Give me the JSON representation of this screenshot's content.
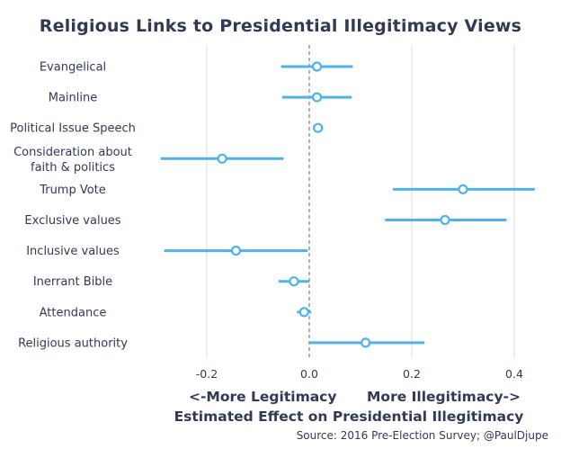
{
  "chart_data": {
    "type": "forest",
    "title": "Religious Links to Presidential Illegitimacy Views",
    "xlabel": "Estimated Effect on Presidential Illegitimacy",
    "xlabel_left": "<-More Legitimacy",
    "xlabel_right": "More Illegitimacy->",
    "source": "Source: 2016 Pre-Election Survey; @PaulDjupe",
    "xlim": [
      -0.3,
      0.45
    ],
    "xticks": [
      -0.2,
      0.0,
      0.2,
      0.4
    ],
    "xtick_labels": [
      "-0.2",
      "0.0",
      "0.2",
      "0.4"
    ],
    "reference_line": 0.0,
    "items": [
      {
        "label": [
          "Evangelical"
        ],
        "estimate": 0.015,
        "lower": -0.055,
        "upper": 0.085
      },
      {
        "label": [
          "Mainline"
        ],
        "estimate": 0.015,
        "lower": -0.053,
        "upper": 0.083
      },
      {
        "label": [
          "Political Issue Speech"
        ],
        "estimate": 0.017,
        "lower": 0.007,
        "upper": 0.027
      },
      {
        "label": [
          "Consideration about",
          "faith & politics"
        ],
        "estimate": -0.17,
        "lower": -0.29,
        "upper": -0.05
      },
      {
        "label": [
          "Trump Vote"
        ],
        "estimate": 0.3,
        "lower": 0.163,
        "upper": 0.44
      },
      {
        "label": [
          "Exclusive values"
        ],
        "estimate": 0.265,
        "lower": 0.148,
        "upper": 0.385
      },
      {
        "label": [
          "Inclusive values"
        ],
        "estimate": -0.143,
        "lower": -0.283,
        "upper": -0.003
      },
      {
        "label": [
          "Inerrant Bible"
        ],
        "estimate": -0.03,
        "lower": -0.06,
        "upper": 0.0
      },
      {
        "label": [
          "Attendance"
        ],
        "estimate": -0.01,
        "lower": -0.024,
        "upper": 0.004
      },
      {
        "label": [
          "Religious authority"
        ],
        "estimate": 0.11,
        "lower": 0.0,
        "upper": 0.225
      }
    ],
    "colors": {
      "point": "#4fb3ea",
      "grid": "#dcdcdc",
      "zero_line": "#666666",
      "text": "#2f3b55"
    }
  }
}
